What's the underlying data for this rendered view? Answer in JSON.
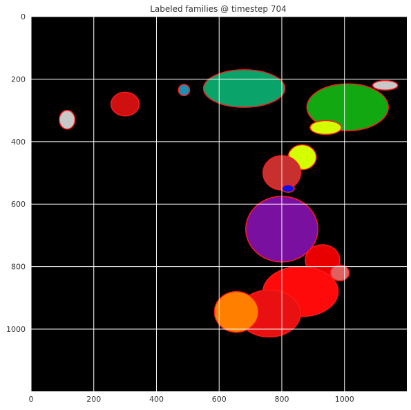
{
  "chart_data": {
    "type": "heatmap",
    "title": "Labeled families @ timestep 704",
    "xlabel": "",
    "ylabel": "",
    "xlim": [
      0,
      1199
    ],
    "ylim": [
      1199,
      0
    ],
    "x_ticks": [
      0,
      200,
      400,
      600,
      800,
      1000
    ],
    "y_ticks": [
      0,
      200,
      400,
      600,
      800,
      1000
    ],
    "grid": true,
    "background": "#000000",
    "boundary_color": "#ff1a1a",
    "regions": [
      {
        "id": "teal-green",
        "color": "#0aa36a",
        "cx": 680,
        "cy": 230,
        "rx": 130,
        "ry": 60
      },
      {
        "id": "blue-teal",
        "color": "#1c8fb3",
        "cx": 488,
        "cy": 235,
        "rx": 18,
        "ry": 18
      },
      {
        "id": "bright-green",
        "color": "#11a811",
        "cx": 1010,
        "cy": 290,
        "rx": 130,
        "ry": 75
      },
      {
        "id": "light-gray-ne",
        "color": "#c8c8c8",
        "cx": 1130,
        "cy": 220,
        "rx": 40,
        "ry": 15
      },
      {
        "id": "dark-red-left",
        "color": "#d01010",
        "cx": 300,
        "cy": 280,
        "rx": 45,
        "ry": 38
      },
      {
        "id": "light-gray-w",
        "color": "#c8c8c8",
        "cx": 115,
        "cy": 330,
        "rx": 25,
        "ry": 30
      },
      {
        "id": "yellow-top",
        "color": "#d4ff00",
        "cx": 940,
        "cy": 355,
        "rx": 50,
        "ry": 22
      },
      {
        "id": "yellow-mid",
        "color": "#d4ff00",
        "cx": 865,
        "cy": 450,
        "rx": 45,
        "ry": 40
      },
      {
        "id": "crimson",
        "color": "#c83030",
        "cx": 800,
        "cy": 500,
        "rx": 60,
        "ry": 55
      },
      {
        "id": "blue",
        "color": "#1010e8",
        "cx": 820,
        "cy": 550,
        "rx": 20,
        "ry": 12
      },
      {
        "id": "purple",
        "color": "#7a10a0",
        "cx": 800,
        "cy": 680,
        "rx": 115,
        "ry": 105
      },
      {
        "id": "red-right",
        "color": "#e80000",
        "cx": 930,
        "cy": 780,
        "rx": 55,
        "ry": 50
      },
      {
        "id": "pink",
        "color": "#e06060",
        "cx": 985,
        "cy": 820,
        "rx": 30,
        "ry": 25
      },
      {
        "id": "red-big",
        "color": "#ff0a0a",
        "cx": 860,
        "cy": 880,
        "rx": 120,
        "ry": 80
      },
      {
        "id": "red-low",
        "color": "#e81010",
        "cx": 760,
        "cy": 950,
        "rx": 100,
        "ry": 75
      },
      {
        "id": "orange",
        "color": "#ff8000",
        "cx": 655,
        "cy": 945,
        "rx": 70,
        "ry": 65
      }
    ]
  }
}
